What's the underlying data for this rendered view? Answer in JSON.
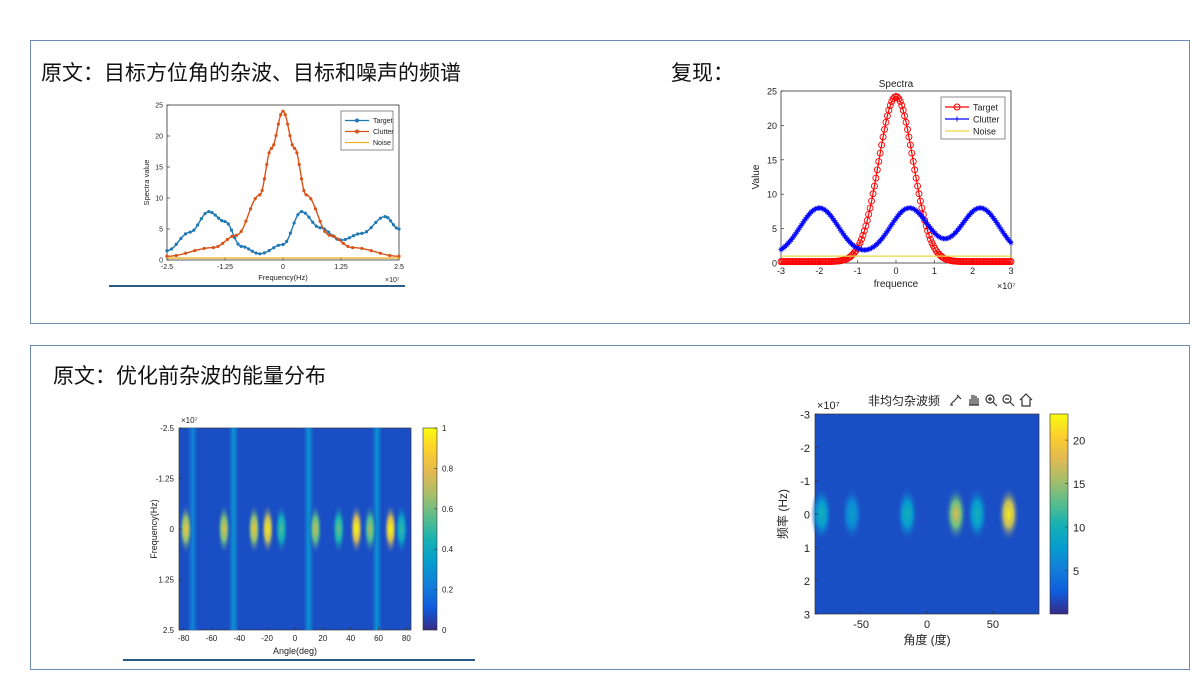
{
  "captions": {
    "top_left": "原文：目标方位角的杂波、目标和噪声的频谱",
    "top_right": "复现：",
    "bottom_left": "原文：优化前杂波的能量分布"
  },
  "colors": {
    "panel_border": "#6e8ab8",
    "target_blue": "#1f77b4",
    "clutter_orange": "#d95319",
    "noise_yellow": "#edb120",
    "repro_target_red": "#ff0000",
    "repro_clutter_blue": "#0000ff",
    "repro_noise_yellow": "#e8d840",
    "underline": "#2a5c8a"
  },
  "toolbar": {
    "title": "非均匀杂波频",
    "icons": [
      "brush-icon",
      "pan-hand-icon",
      "zoom-in-icon",
      "zoom-out-icon",
      "home-icon"
    ]
  },
  "chart_data": [
    {
      "id": "orig_spectra",
      "type": "line",
      "title": "",
      "xlabel": "Frequency(Hz)",
      "ylabel": "Spectra value",
      "x_exponent": "×10⁷",
      "xlim": [
        -2.5,
        2.5
      ],
      "ylim": [
        0,
        25
      ],
      "xticks": [
        "-2.5",
        "-1.25",
        "0",
        "1.25",
        "2.5"
      ],
      "yticks": [
        "0",
        "5",
        "10",
        "15",
        "20",
        "25"
      ],
      "legend_position": "top-right",
      "series": [
        {
          "name": "Target",
          "color": "#1f77b4",
          "marker": "dot",
          "x": [
            -2.5,
            -2.0,
            -1.6,
            -1.25,
            -0.9,
            -0.5,
            0.0,
            0.4,
            0.8,
            1.25,
            1.7,
            2.2,
            2.5
          ],
          "y": [
            1.5,
            4.5,
            7.8,
            6.2,
            2.2,
            1.0,
            2.5,
            7.8,
            5.2,
            3.2,
            4.3,
            7.0,
            5.0
          ]
        },
        {
          "name": "Clutter",
          "color": "#d95319",
          "marker": "dot",
          "x": [
            -2.5,
            -1.5,
            -1.0,
            -0.5,
            -0.25,
            0.0,
            0.25,
            0.5,
            1.0,
            1.5,
            2.5
          ],
          "y": [
            0.6,
            2.0,
            4.0,
            10.5,
            18.0,
            24.0,
            18.0,
            10.5,
            4.0,
            2.0,
            0.6
          ]
        },
        {
          "name": "Noise",
          "color": "#edb120",
          "marker": "none",
          "x": [
            -2.5,
            2.5
          ],
          "y": [
            0.3,
            0.3
          ]
        }
      ]
    },
    {
      "id": "repro_spectra",
      "type": "line",
      "title": "Spectra",
      "xlabel": "frequence",
      "ylabel": "Value",
      "x_exponent": "×10⁷",
      "xlim": [
        -3,
        3
      ],
      "ylim": [
        0,
        25
      ],
      "xticks": [
        "-3",
        "-2",
        "-1",
        "0",
        "1",
        "2",
        "3"
      ],
      "yticks": [
        "0",
        "5",
        "10",
        "15",
        "20",
        "25"
      ],
      "legend_position": "top-right",
      "series": [
        {
          "name": "Target",
          "color": "#ff0000",
          "marker": "circle",
          "gaussians": [
            {
              "a": 24,
              "mu": 0,
              "sigma": 0.45
            }
          ],
          "offset": 0.2
        },
        {
          "name": "Clutter",
          "color": "#0000ff",
          "marker": "asterisk",
          "gaussians": [
            {
              "a": 7,
              "mu": -2.0,
              "sigma": 0.5
            },
            {
              "a": 7,
              "mu": 0.35,
              "sigma": 0.5
            },
            {
              "a": 7,
              "mu": 2.2,
              "sigma": 0.5
            }
          ],
          "offset": 1.0
        },
        {
          "name": "Noise",
          "color": "#e8d840",
          "marker": "none",
          "gaussians": [],
          "offset": 1.0
        }
      ]
    },
    {
      "id": "orig_heatmap",
      "type": "heatmap",
      "xlabel": "Angle(deg)",
      "ylabel": "Frequency(Hz)",
      "y_exponent": "×10⁷",
      "xlim": [
        -85,
        85
      ],
      "ylim": [
        -2.5,
        2.5
      ],
      "xticks": [
        "-80",
        "-60",
        "-40",
        "-20",
        "0",
        "20",
        "40",
        "60",
        "80"
      ],
      "yticks": [
        "-2.5",
        "-1.25",
        "0",
        "1.25",
        "2.5"
      ],
      "colorbar": {
        "min": 0,
        "max": 1,
        "ticks": [
          "0",
          "0.2",
          "0.4",
          "0.6",
          "0.8",
          "1"
        ]
      },
      "blobs": [
        {
          "angle": -80,
          "intensity": 0.85
        },
        {
          "angle": -52,
          "intensity": 0.8
        },
        {
          "angle": -30,
          "intensity": 0.85
        },
        {
          "angle": -20,
          "intensity": 0.95
        },
        {
          "angle": -10,
          "intensity": 0.55
        },
        {
          "angle": 15,
          "intensity": 0.75
        },
        {
          "angle": 32,
          "intensity": 0.6
        },
        {
          "angle": 45,
          "intensity": 1.0
        },
        {
          "angle": 55,
          "intensity": 0.7
        },
        {
          "angle": 70,
          "intensity": 1.0
        },
        {
          "angle": 78,
          "intensity": 0.5
        }
      ],
      "stripes": [
        {
          "angle": -75,
          "intensity": 0.25
        },
        {
          "angle": -45,
          "intensity": 0.3
        },
        {
          "angle": 10,
          "intensity": 0.3
        },
        {
          "angle": 60,
          "intensity": 0.3
        }
      ]
    },
    {
      "id": "repro_heatmap",
      "type": "heatmap",
      "xlabel": "角度 (度)",
      "ylabel": "频率 (Hz)",
      "y_exponent": "×10⁷",
      "xlim": [
        -85,
        85
      ],
      "ylim": [
        -3,
        3
      ],
      "xticks": [
        "-50",
        "0",
        "50"
      ],
      "yticks": [
        "-3",
        "-2",
        "-1",
        "0",
        "1",
        "2",
        "3"
      ],
      "colorbar": {
        "min": 0,
        "max": 23,
        "ticks": [
          "5",
          "10",
          "15",
          "20"
        ]
      },
      "blobs": [
        {
          "angle": -80,
          "intensity": 10
        },
        {
          "angle": -57,
          "intensity": 8
        },
        {
          "angle": -15,
          "intensity": 10
        },
        {
          "angle": 22,
          "intensity": 18
        },
        {
          "angle": 38,
          "intensity": 10
        },
        {
          "angle": 62,
          "intensity": 22
        }
      ]
    }
  ]
}
